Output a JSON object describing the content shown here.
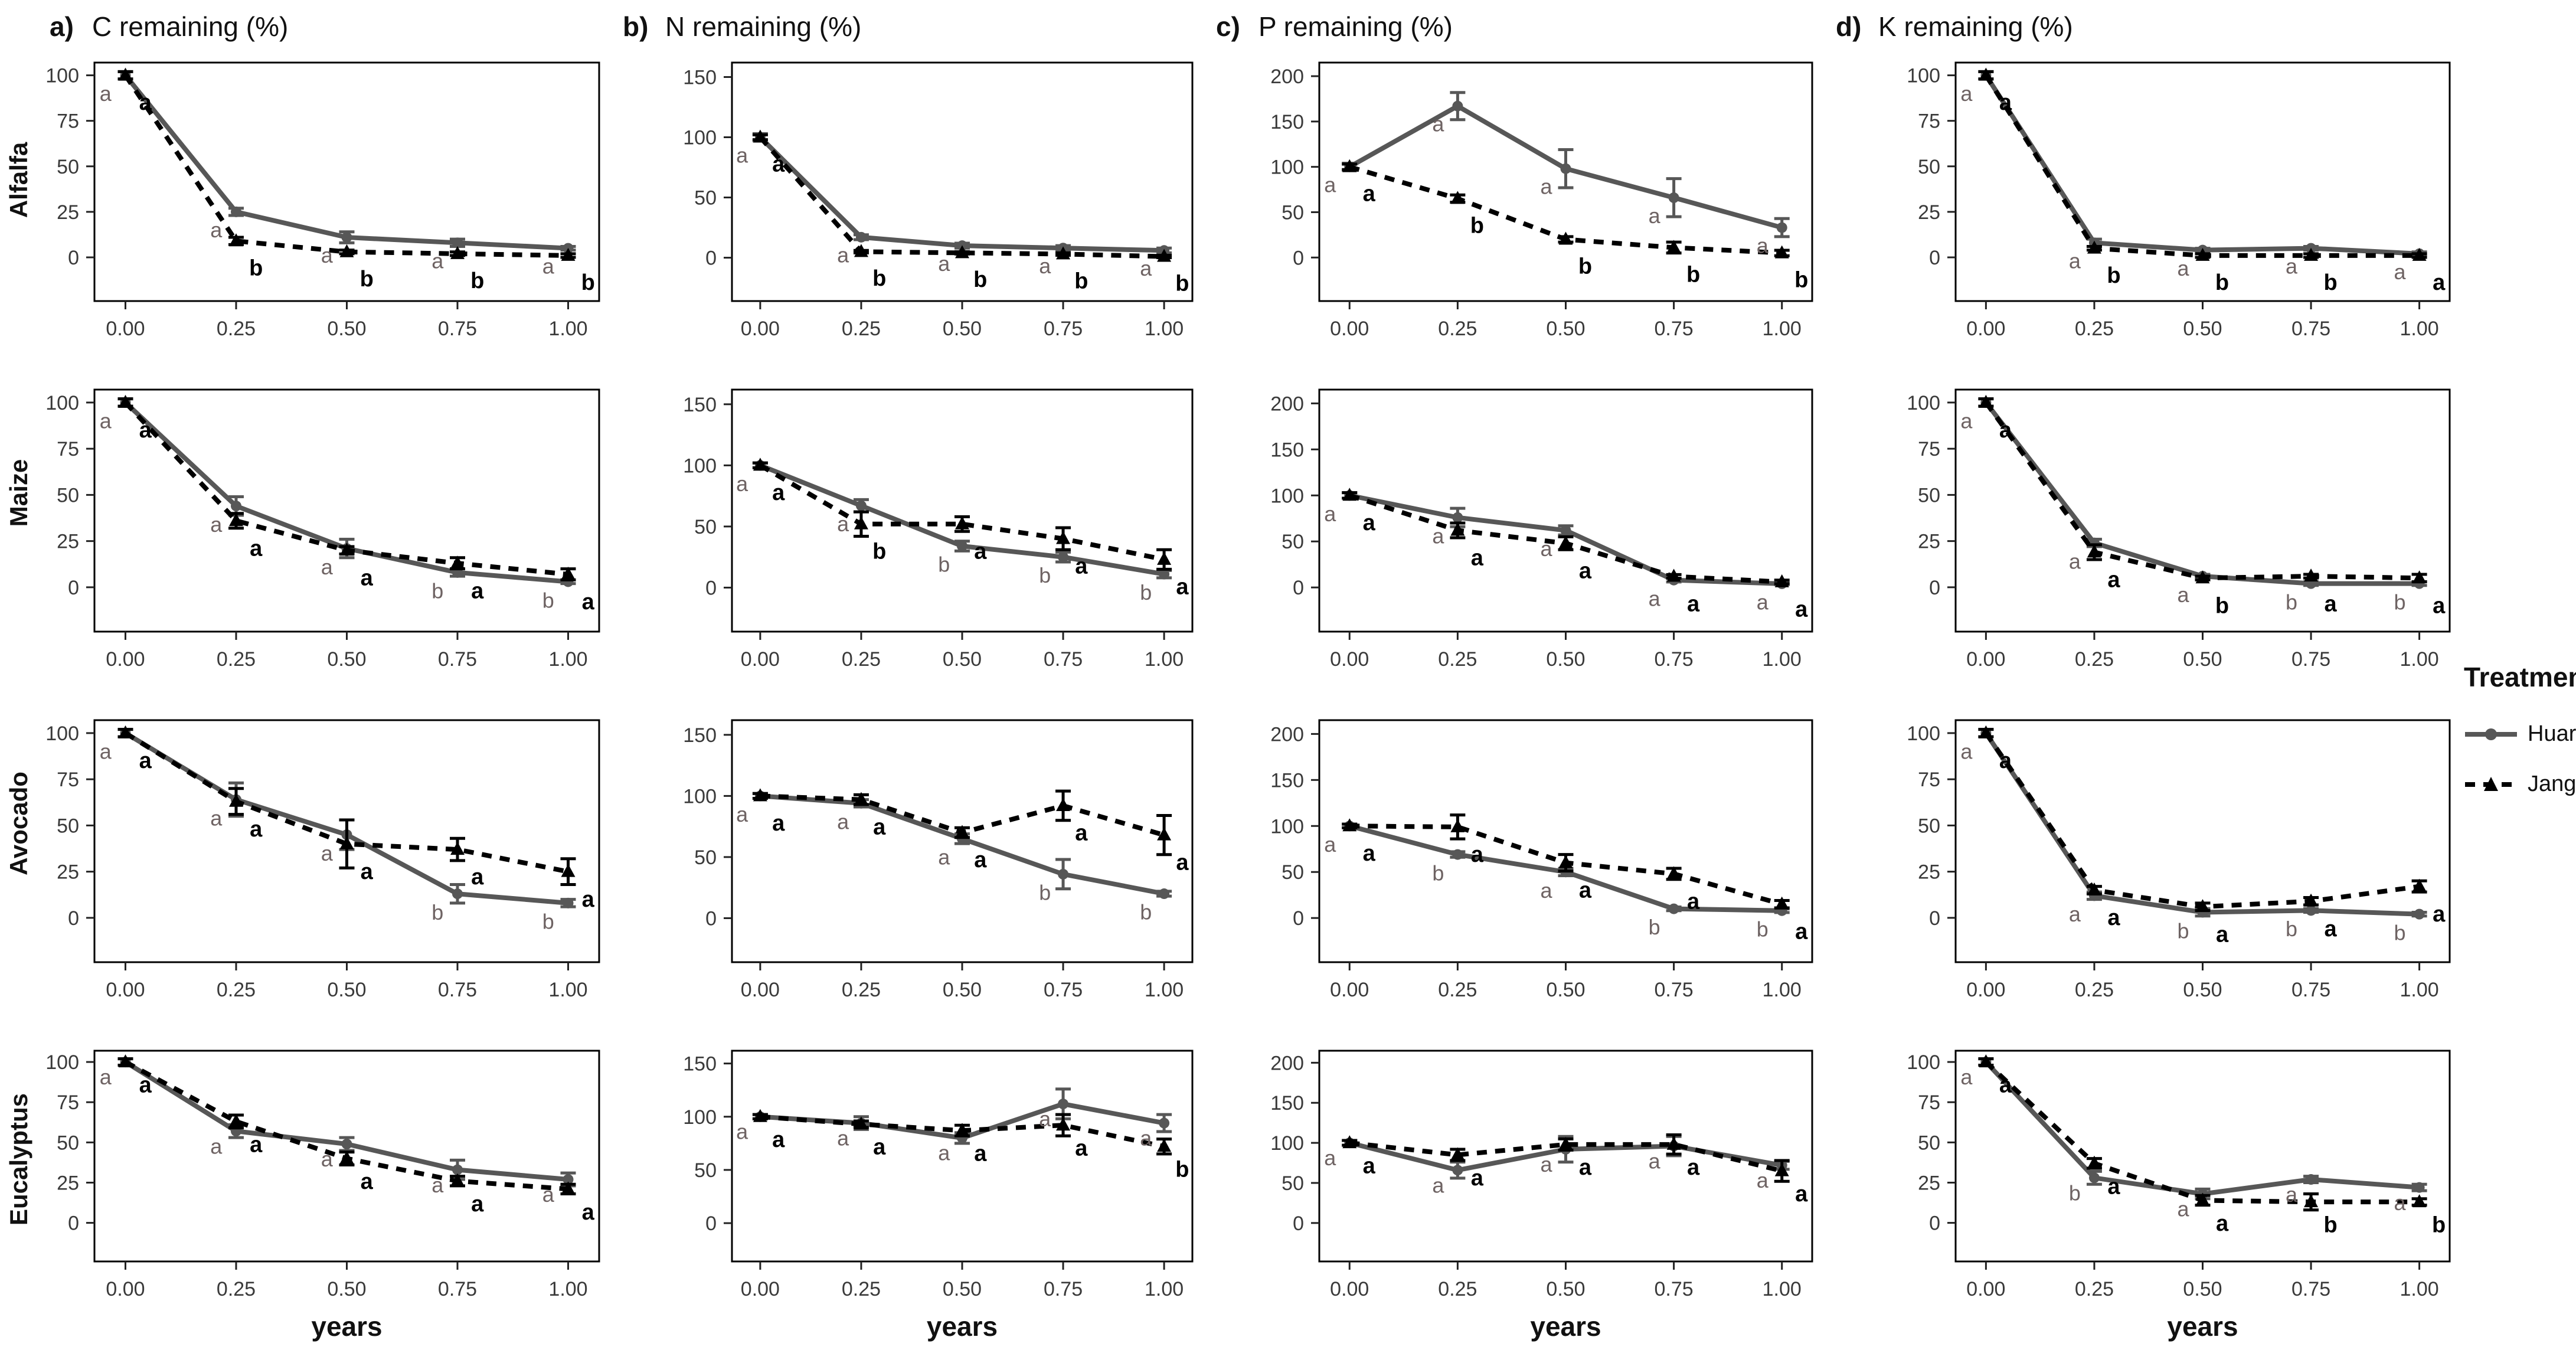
{
  "chart_data": {
    "type": "line",
    "x": [
      0,
      0.25,
      0.5,
      0.75,
      1.0
    ],
    "x_ticks": [
      "0.00",
      "0.25",
      "0.50",
      "0.75",
      "1.00"
    ],
    "xlabel": "years",
    "grid": "off",
    "legend": {
      "title": "Treatments",
      "position": "right",
      "entries": [
        {
          "label": "Huaral",
          "line": "solid",
          "marker": "circle",
          "color": "#575757"
        },
        {
          "label": "Jangas",
          "line": "dashed",
          "marker": "triangle",
          "color": "#000000"
        }
      ]
    },
    "letter_colors": {
      "huaral": "#6e6363",
      "jangas": "#000000"
    },
    "rows": [
      "Alfalfa",
      "Maize",
      "Avocado",
      "Eucalyptus"
    ],
    "columns": [
      {
        "tag": "a)",
        "title": "C remaining (%)",
        "yticks": [
          0,
          25,
          50,
          75,
          100
        ],
        "ylim": [
          0,
          100
        ],
        "ydomain": [
          -24,
          107
        ],
        "letter_off": 14
      },
      {
        "tag": "b)",
        "title": "N remaining (%)",
        "yticks": [
          0,
          50,
          100,
          150
        ],
        "ylim": [
          0,
          150
        ],
        "ydomain": [
          -36,
          162
        ],
        "letter_off": 21
      },
      {
        "tag": "c)",
        "title": "P remaining (%)",
        "yticks": [
          0,
          50,
          100,
          150,
          200
        ],
        "ylim": [
          0,
          200
        ],
        "ydomain": [
          -48,
          215
        ],
        "letter_off": 28
      },
      {
        "tag": "d)",
        "title": "K remaining (%)",
        "yticks": [
          0,
          25,
          50,
          75,
          100
        ],
        "ylim": [
          0,
          100
        ],
        "ydomain": [
          -24,
          107
        ],
        "letter_off": 14
      }
    ],
    "panels": [
      {
        "row": 0,
        "col": 0,
        "huaral": {
          "y": [
            100,
            25,
            11,
            8,
            5
          ],
          "err": [
            2,
            2,
            3,
            2,
            1
          ]
        },
        "jangas": {
          "y": [
            100,
            9,
            3,
            2,
            1
          ],
          "err": [
            2,
            2,
            1,
            1,
            1
          ]
        },
        "letters": [
          [
            "a",
            "a"
          ],
          [
            "a",
            "b"
          ],
          [
            "a",
            "b"
          ],
          [
            "a",
            "b"
          ],
          [
            "a",
            "b"
          ]
        ]
      },
      {
        "row": 0,
        "col": 1,
        "huaral": {
          "y": [
            100,
            17,
            10,
            8,
            6
          ],
          "err": [
            3,
            2,
            2,
            2,
            2
          ]
        },
        "jangas": {
          "y": [
            100,
            5,
            4,
            3,
            1
          ],
          "err": [
            2,
            1,
            1,
            1,
            1
          ]
        },
        "letters": [
          [
            "a",
            "a"
          ],
          [
            "a",
            "b"
          ],
          [
            "a",
            "b"
          ],
          [
            "a",
            "b"
          ],
          [
            "a",
            "b"
          ]
        ]
      },
      {
        "row": 0,
        "col": 2,
        "huaral": {
          "y": [
            100,
            167,
            98,
            66,
            33
          ],
          "err": [
            4,
            15,
            21,
            21,
            10
          ]
        },
        "jangas": {
          "y": [
            100,
            65,
            20,
            11,
            5
          ],
          "err": [
            3,
            4,
            3,
            6,
            3
          ]
        },
        "letters": [
          [
            "a",
            "a"
          ],
          [
            "a",
            "b"
          ],
          [
            "a",
            "b"
          ],
          [
            "a",
            "b"
          ],
          [
            "a",
            "b"
          ]
        ]
      },
      {
        "row": 0,
        "col": 3,
        "huaral": {
          "y": [
            100,
            8,
            4,
            5,
            2
          ],
          "err": [
            2,
            2,
            1,
            1,
            1
          ]
        },
        "jangas": {
          "y": [
            100,
            5,
            1,
            1,
            1
          ],
          "err": [
            2,
            1,
            1,
            1,
            1
          ]
        },
        "letters": [
          [
            "a",
            "a"
          ],
          [
            "a",
            "b"
          ],
          [
            "a",
            "b"
          ],
          [
            "a",
            "b"
          ],
          [
            "a",
            "a"
          ]
        ]
      },
      {
        "row": 1,
        "col": 0,
        "huaral": {
          "y": [
            100,
            44,
            21,
            8,
            3
          ],
          "err": [
            2,
            5,
            5,
            2,
            1
          ]
        },
        "jangas": {
          "y": [
            100,
            36,
            20,
            13,
            7
          ],
          "err": [
            2,
            4,
            2,
            3,
            3
          ]
        },
        "letters": [
          [
            "a",
            "a"
          ],
          [
            "a",
            "a"
          ],
          [
            "a",
            "a"
          ],
          [
            "b",
            "a"
          ],
          [
            "b",
            "a"
          ]
        ]
      },
      {
        "row": 1,
        "col": 1,
        "huaral": {
          "y": [
            100,
            67,
            34,
            25,
            11
          ],
          "err": [
            2,
            5,
            4,
            4,
            3
          ]
        },
        "jangas": {
          "y": [
            100,
            52,
            52,
            40,
            23
          ],
          "err": [
            2,
            10,
            6,
            9,
            8
          ]
        },
        "letters": [
          [
            "a",
            "a"
          ],
          [
            "a",
            "b"
          ],
          [
            "b",
            "a"
          ],
          [
            "b",
            "a"
          ],
          [
            "b",
            "a"
          ]
        ]
      },
      {
        "row": 1,
        "col": 2,
        "huaral": {
          "y": [
            100,
            76,
            62,
            8,
            4
          ],
          "err": [
            3,
            10,
            5,
            2,
            1
          ]
        },
        "jangas": {
          "y": [
            100,
            62,
            48,
            12,
            6
          ],
          "err": [
            3,
            8,
            7,
            2,
            2
          ]
        },
        "letters": [
          [
            "a",
            "a"
          ],
          [
            "a",
            "a"
          ],
          [
            "a",
            "a"
          ],
          [
            "a",
            "a"
          ],
          [
            "a",
            "a"
          ]
        ]
      },
      {
        "row": 1,
        "col": 3,
        "huaral": {
          "y": [
            100,
            24,
            6,
            2,
            2
          ],
          "err": [
            2,
            2,
            1,
            1,
            1
          ]
        },
        "jangas": {
          "y": [
            100,
            19,
            5,
            6,
            5
          ],
          "err": [
            2,
            4,
            1,
            1,
            2
          ]
        },
        "letters": [
          [
            "a",
            "a"
          ],
          [
            "a",
            "a"
          ],
          [
            "a",
            "b"
          ],
          [
            "b",
            "a"
          ],
          [
            "b",
            "a"
          ]
        ]
      },
      {
        "row": 2,
        "col": 0,
        "huaral": {
          "y": [
            100,
            64,
            45,
            13,
            8
          ],
          "err": [
            2,
            9,
            8,
            5,
            2
          ]
        },
        "jangas": {
          "y": [
            100,
            63,
            40,
            37,
            25
          ],
          "err": [
            2,
            7,
            13,
            6,
            7
          ]
        },
        "letters": [
          [
            "a",
            "a"
          ],
          [
            "a",
            "a"
          ],
          [
            "a",
            "a"
          ],
          [
            "b",
            "a"
          ],
          [
            "b",
            "a"
          ]
        ]
      },
      {
        "row": 2,
        "col": 1,
        "huaral": {
          "y": [
            100,
            94,
            65,
            36,
            20
          ],
          "err": [
            2,
            3,
            4,
            12,
            2
          ]
        },
        "jangas": {
          "y": [
            100,
            97,
            70,
            92,
            68
          ],
          "err": [
            2,
            4,
            4,
            12,
            16
          ]
        },
        "letters": [
          [
            "a",
            "a"
          ],
          [
            "a",
            "a"
          ],
          [
            "a",
            "a"
          ],
          [
            "b",
            "a"
          ],
          [
            "b",
            "a"
          ]
        ]
      },
      {
        "row": 2,
        "col": 2,
        "huaral": {
          "y": [
            100,
            69,
            50,
            10,
            8
          ],
          "err": [
            2,
            3,
            4,
            2,
            2
          ]
        },
        "jangas": {
          "y": [
            100,
            99,
            60,
            48,
            15
          ],
          "err": [
            2,
            13,
            9,
            6,
            4
          ]
        },
        "letters": [
          [
            "a",
            "a"
          ],
          [
            "b",
            "a"
          ],
          [
            "a",
            "a"
          ],
          [
            "b",
            "a"
          ],
          [
            "b",
            "a"
          ]
        ]
      },
      {
        "row": 2,
        "col": 3,
        "huaral": {
          "y": [
            100,
            12,
            3,
            4,
            2
          ],
          "err": [
            2,
            2,
            2,
            1,
            1
          ]
        },
        "jangas": {
          "y": [
            100,
            15,
            6,
            9,
            17
          ],
          "err": [
            2,
            2,
            2,
            2,
            3
          ]
        },
        "letters": [
          [
            "a",
            "a"
          ],
          [
            "a",
            "a"
          ],
          [
            "b",
            "a"
          ],
          [
            "b",
            "a"
          ],
          [
            "b",
            "a"
          ]
        ]
      },
      {
        "row": 3,
        "col": 0,
        "huaral": {
          "y": [
            100,
            57,
            49,
            33,
            27
          ],
          "err": [
            2,
            4,
            4,
            6,
            4
          ]
        },
        "jangas": {
          "y": [
            100,
            63,
            40,
            26,
            21
          ],
          "err": [
            2,
            4,
            4,
            3,
            3
          ]
        },
        "letters": [
          [
            "a",
            "a"
          ],
          [
            "a",
            "a"
          ],
          [
            "a",
            "a"
          ],
          [
            "a",
            "a"
          ],
          [
            "a",
            "a"
          ]
        ]
      },
      {
        "row": 3,
        "col": 1,
        "huaral": {
          "y": [
            100,
            94,
            80,
            112,
            94
          ],
          "err": [
            2,
            6,
            5,
            14,
            8
          ]
        },
        "jangas": {
          "y": [
            100,
            93,
            87,
            92,
            72
          ],
          "err": [
            2,
            3,
            5,
            10,
            7
          ]
        },
        "letters": [
          [
            "a",
            "a"
          ],
          [
            "a",
            "a"
          ],
          [
            "a",
            "a"
          ],
          [
            "a",
            "a"
          ],
          [
            "a",
            "b"
          ]
        ]
      },
      {
        "row": 3,
        "col": 2,
        "huaral": {
          "y": [
            100,
            66,
            92,
            96,
            72
          ],
          "err": [
            3,
            10,
            16,
            12,
            5
          ]
        },
        "jangas": {
          "y": [
            100,
            85,
            98,
            98,
            65
          ],
          "err": [
            3,
            7,
            7,
            12,
            13
          ]
        },
        "letters": [
          [
            "a",
            "a"
          ],
          [
            "a",
            "a"
          ],
          [
            "a",
            "a"
          ],
          [
            "a",
            "a"
          ],
          [
            "a",
            "a"
          ]
        ]
      },
      {
        "row": 3,
        "col": 3,
        "huaral": {
          "y": [
            100,
            28,
            18,
            27,
            22
          ],
          "err": [
            2,
            4,
            3,
            2,
            2
          ]
        },
        "jangas": {
          "y": [
            100,
            37,
            14,
            13,
            13
          ],
          "err": [
            2,
            3,
            3,
            5,
            2
          ]
        },
        "letters": [
          [
            "a",
            "a"
          ],
          [
            "b",
            "a"
          ],
          [
            "a",
            "a"
          ],
          [
            "a",
            "b"
          ],
          [
            "a",
            "b"
          ]
        ]
      }
    ]
  }
}
